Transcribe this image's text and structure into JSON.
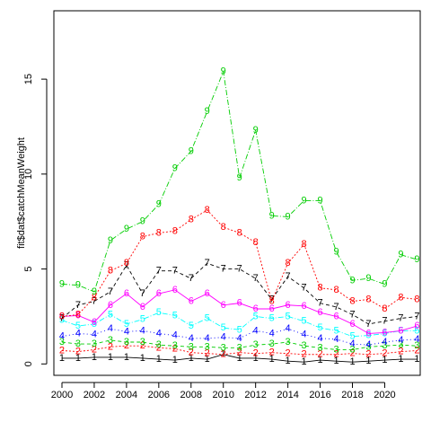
{
  "chart_data": {
    "type": "line",
    "title": "",
    "xlabel": "",
    "ylabel": "fit$dat$catchMeanWeight",
    "xlim": [
      1999.5,
      2022.2
    ],
    "ylim": [
      -0.6,
      18.6
    ],
    "xticks": [
      2000,
      2002,
      2004,
      2006,
      2008,
      2010,
      2012,
      2014,
      2016,
      2018,
      2020
    ],
    "xtick_labels": [
      "2000",
      "2002",
      "2004",
      "2006",
      "2008",
      "2010",
      "2012",
      "2014",
      "2016",
      "2018",
      "2020"
    ],
    "yticks": [
      0,
      5,
      10,
      15
    ],
    "ytick_labels": [
      "0",
      "5",
      "10",
      "15"
    ],
    "grid": false,
    "x": [
      2000,
      2001,
      2002,
      2003,
      2004,
      2005,
      2006,
      2007,
      2008,
      2009,
      2010,
      2011,
      2012,
      2013,
      2014,
      2015,
      2016,
      2017,
      2018,
      2019,
      2020,
      2021,
      2022
    ],
    "series": [
      {
        "label": "1",
        "color": "#000000",
        "dash": "",
        "values": [
          0.3,
          0.3,
          0.35,
          0.35,
          0.35,
          0.3,
          0.25,
          0.2,
          0.3,
          0.25,
          0.5,
          0.3,
          0.3,
          0.25,
          0.15,
          0.1,
          0.2,
          0.15,
          0.1,
          0.15,
          0.2,
          0.25,
          0.25
        ]
      },
      {
        "label": "2",
        "color": "#ff0000",
        "dash": "2,2",
        "values": [
          0.7,
          0.65,
          0.75,
          0.9,
          0.95,
          0.95,
          0.85,
          0.8,
          0.6,
          0.55,
          0.5,
          0.6,
          0.55,
          0.6,
          0.55,
          0.5,
          0.5,
          0.5,
          0.55,
          0.5,
          0.55,
          0.65,
          0.7
        ]
      },
      {
        "label": "3",
        "color": "#00cd00",
        "dash": "4,3",
        "values": [
          1.15,
          1.05,
          1.05,
          1.25,
          1.15,
          1.15,
          1.0,
          0.95,
          0.9,
          0.9,
          0.85,
          0.85,
          1.0,
          1.05,
          1.15,
          0.95,
          0.85,
          0.75,
          0.75,
          0.9,
          0.95,
          1.0,
          0.95
        ]
      },
      {
        "label": "4",
        "color": "#0000ff",
        "dash": "1,3",
        "values": [
          1.45,
          1.6,
          1.55,
          1.85,
          1.7,
          1.75,
          1.6,
          1.5,
          1.35,
          1.35,
          1.4,
          1.35,
          1.75,
          1.6,
          1.85,
          1.55,
          1.35,
          1.3,
          1.05,
          1.0,
          1.15,
          1.25,
          1.3
        ]
      },
      {
        "label": "5",
        "color": "#00ffff",
        "dash": "6,2,1,2",
        "values": [
          2.3,
          2.0,
          2.1,
          2.6,
          2.1,
          2.35,
          2.7,
          2.55,
          2.0,
          2.4,
          1.9,
          1.8,
          2.5,
          2.4,
          2.5,
          2.25,
          1.9,
          1.75,
          1.45,
          1.5,
          1.6,
          1.75,
          1.75
        ]
      },
      {
        "label": "6",
        "color": "#ff00ff",
        "dash": "",
        "values": [
          2.5,
          2.55,
          2.2,
          3.1,
          3.7,
          3.0,
          3.7,
          3.9,
          3.3,
          3.7,
          3.1,
          3.2,
          2.9,
          2.9,
          3.1,
          3.05,
          2.7,
          2.5,
          2.1,
          1.6,
          1.65,
          1.75,
          2.0
        ]
      },
      {
        "label": "7",
        "color": "#000000",
        "dash": "4,3",
        "values": [
          2.4,
          3.1,
          3.3,
          3.8,
          5.2,
          3.7,
          4.9,
          4.9,
          4.5,
          5.3,
          5.0,
          5.0,
          4.5,
          3.4,
          4.6,
          4.0,
          3.2,
          3.0,
          2.6,
          2.1,
          2.25,
          2.4,
          2.5
        ]
      },
      {
        "label": "8",
        "color": "#ff0000",
        "dash": "2,2",
        "values": [
          2.5,
          2.6,
          3.5,
          4.9,
          5.3,
          6.7,
          6.9,
          7.0,
          7.6,
          8.1,
          7.2,
          6.9,
          6.4,
          3.3,
          5.3,
          6.3,
          4.0,
          3.9,
          3.3,
          3.4,
          2.9,
          3.5,
          3.4
        ]
      },
      {
        "label": "9",
        "color": "#00cd00",
        "dash": "6,2,1,2",
        "values": [
          4.2,
          4.15,
          3.8,
          6.5,
          7.1,
          7.5,
          8.4,
          10.3,
          11.2,
          13.3,
          15.4,
          9.8,
          12.3,
          7.8,
          7.75,
          8.6,
          8.6,
          5.9,
          4.4,
          4.5,
          4.2,
          5.75,
          5.5
        ]
      }
    ]
  }
}
